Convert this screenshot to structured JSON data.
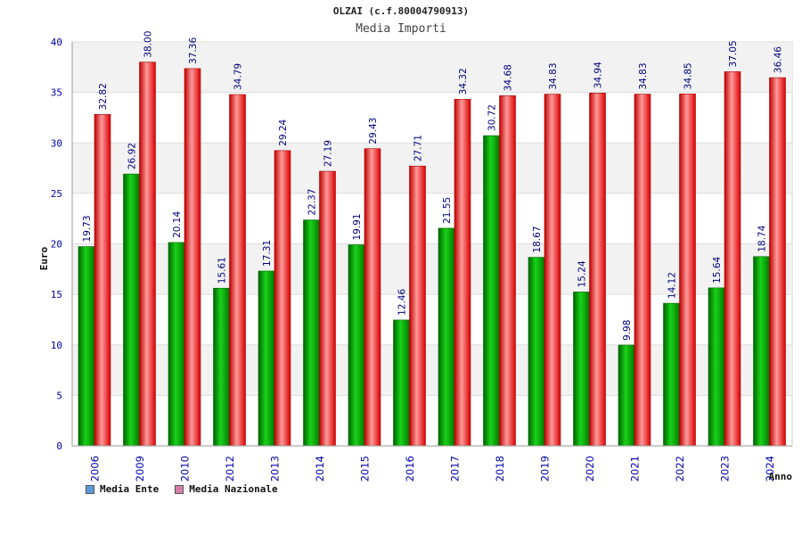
{
  "chart_data": {
    "type": "bar",
    "title": "OLZAI (c.f.80004790913)",
    "subtitle": "Media Importi",
    "xlabel": "Anno",
    "ylabel": "Euro",
    "ylim": [
      0,
      40
    ],
    "yticks": [
      0,
      5,
      10,
      15,
      20,
      25,
      30,
      35,
      40
    ],
    "categories": [
      "2006",
      "2009",
      "2010",
      "2012",
      "2013",
      "2014",
      "2015",
      "2016",
      "2017",
      "2018",
      "2019",
      "2020",
      "2021",
      "2022",
      "2023",
      "2024"
    ],
    "series": [
      {
        "name": "Media Ente",
        "color": "#00a000",
        "legend_color": "#5b9bd5",
        "values": [
          19.73,
          26.92,
          20.14,
          15.61,
          17.31,
          22.37,
          19.91,
          12.46,
          21.55,
          30.72,
          18.67,
          15.24,
          9.98,
          14.12,
          15.64,
          18.74
        ]
      },
      {
        "name": "Media Nazionale",
        "color": "#e00000",
        "legend_color": "#d67fa8",
        "values": [
          32.82,
          38.0,
          37.36,
          34.79,
          29.24,
          27.19,
          29.43,
          27.71,
          34.32,
          34.68,
          34.83,
          34.94,
          34.83,
          34.85,
          37.05,
          36.46
        ]
      }
    ],
    "grid": true,
    "legend_position": "bottom-left"
  }
}
